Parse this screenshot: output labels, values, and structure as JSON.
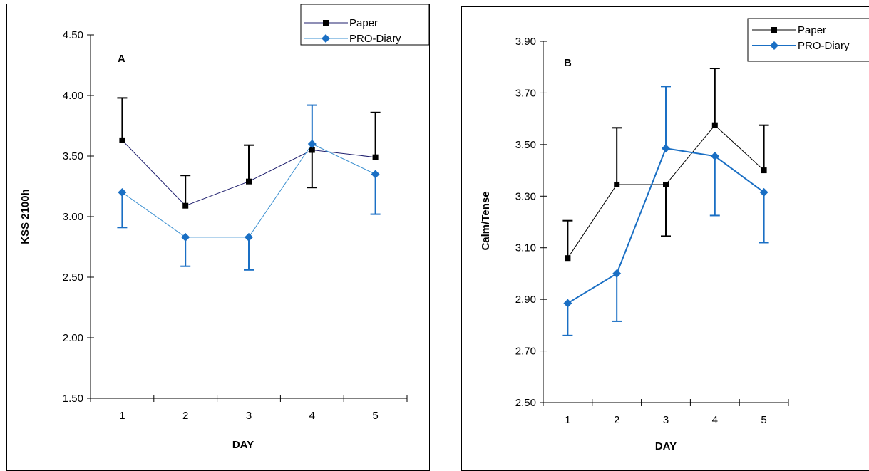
{
  "chart_data": [
    {
      "type": "line",
      "panel_label": "A",
      "xlabel": "DAY",
      "ylabel": "KSS 2100h",
      "x": [
        1,
        2,
        3,
        4,
        5
      ],
      "x_tick_labels": [
        "1",
        "2",
        "3",
        "4",
        "5"
      ],
      "ylim": [
        1.5,
        4.5
      ],
      "y_tick_labels": [
        "1.50",
        "2.00",
        "2.50",
        "3.00",
        "3.50",
        "4.00",
        "4.50"
      ],
      "grid": false,
      "legend_position": "top-right",
      "series": [
        {
          "name": "Paper",
          "color": "#1f1f6e",
          "marker": "square",
          "marker_color": "#000000",
          "values": [
            3.63,
            3.09,
            3.29,
            3.55,
            3.49
          ],
          "error_upper": [
            0.35,
            0.25,
            0.3,
            null,
            0.37
          ],
          "error_lower": [
            null,
            null,
            null,
            0.31,
            null
          ]
        },
        {
          "name": "PRO-Diary",
          "color": "#3a8fd0",
          "marker": "diamond",
          "marker_color": "#1a6fc4",
          "values": [
            3.2,
            2.83,
            2.83,
            3.6,
            3.35
          ],
          "error_upper": [
            null,
            null,
            null,
            0.32,
            null
          ],
          "error_lower": [
            0.29,
            0.24,
            0.27,
            null,
            0.33
          ]
        }
      ]
    },
    {
      "type": "line",
      "panel_label": "B",
      "xlabel": "DAY",
      "ylabel": "Calm/Tense",
      "x": [
        1,
        2,
        3,
        4,
        5
      ],
      "x_tick_labels": [
        "1",
        "2",
        "3",
        "4",
        "5"
      ],
      "ylim": [
        2.5,
        3.9
      ],
      "y_tick_labels": [
        "2.50",
        "2.70",
        "2.90",
        "3.10",
        "3.30",
        "3.50",
        "3.70",
        "3.90"
      ],
      "grid": false,
      "legend_position": "top-right",
      "series": [
        {
          "name": "Paper",
          "color": "#000000",
          "marker": "square",
          "marker_color": "#000000",
          "values": [
            3.06,
            3.345,
            3.345,
            3.575,
            3.4
          ],
          "error_upper": [
            0.145,
            0.22,
            null,
            0.22,
            0.175
          ],
          "error_lower": [
            null,
            null,
            0.2,
            null,
            null
          ]
        },
        {
          "name": "PRO-Diary",
          "color": "#1a6fc4",
          "marker": "diamond",
          "marker_color": "#1a6fc4",
          "values": [
            2.885,
            3.0,
            3.485,
            3.455,
            3.315
          ],
          "error_upper": [
            null,
            null,
            0.24,
            null,
            null
          ],
          "error_lower": [
            0.125,
            0.185,
            null,
            0.23,
            0.195
          ]
        }
      ]
    }
  ]
}
